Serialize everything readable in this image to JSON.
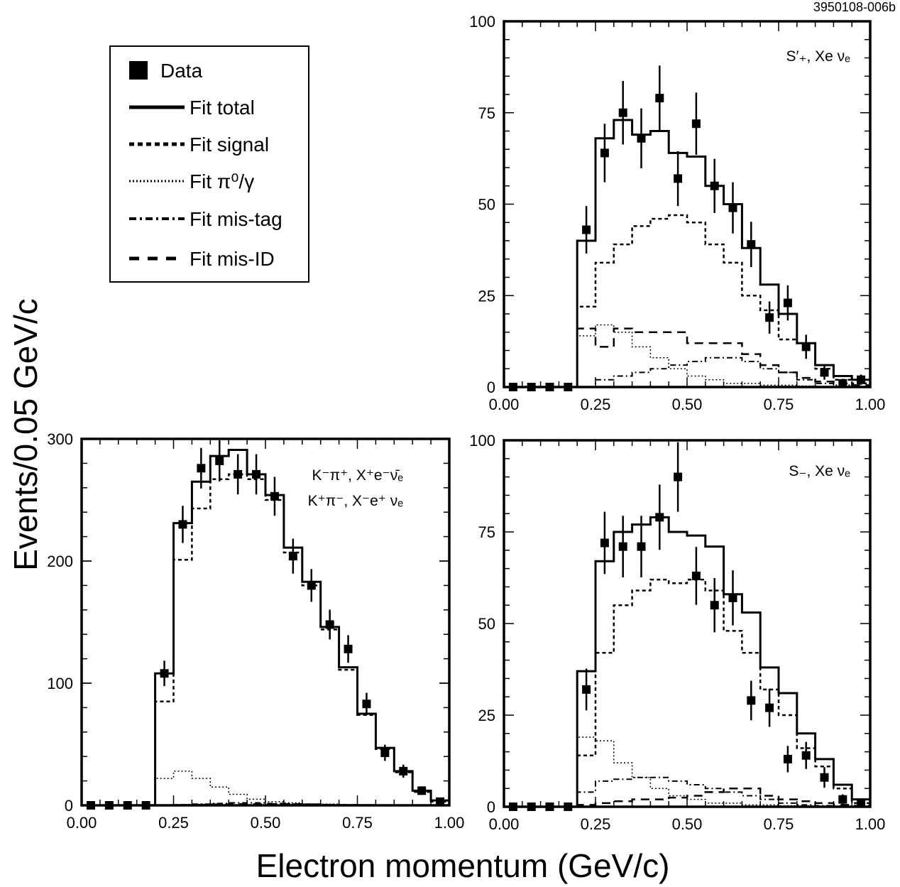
{
  "figure": {
    "id_label": "3950108-006b",
    "xlabel": "Electron momentum (GeV/c)",
    "ylabel": "Events/0.05 GeV/c"
  },
  "legend": {
    "placement": "top-left",
    "entries": [
      {
        "label": "Data",
        "style": "marker"
      },
      {
        "label": "Fit total",
        "style": "solid"
      },
      {
        "label": "Fit signal",
        "style": "dashed"
      },
      {
        "label": "Fit π⁰/γ",
        "style": "dotted"
      },
      {
        "label": "Fit mis-tag",
        "style": "dashdot"
      },
      {
        "label": "Fit mis-ID",
        "style": "longdash"
      }
    ]
  },
  "chart_data": [
    {
      "type": "histogram",
      "panel": "top-right",
      "annotation": [
        "S′₊, Xe νₑ"
      ],
      "xlim": [
        0,
        1
      ],
      "ylim": [
        0,
        100
      ],
      "xticks": [
        "0.00",
        "0.25",
        "0.50",
        "0.75",
        "1.00"
      ],
      "yticks": [
        "0",
        "25",
        "50",
        "75",
        "100"
      ],
      "bin_edges": [
        0.2,
        0.25,
        0.3,
        0.35,
        0.4,
        0.45,
        0.5,
        0.55,
        0.6,
        0.65,
        0.7,
        0.75,
        0.8,
        0.85,
        0.9,
        0.95,
        1.0
      ],
      "data_points": {
        "x": [
          0.025,
          0.075,
          0.125,
          0.175,
          0.225,
          0.275,
          0.325,
          0.375,
          0.425,
          0.475,
          0.525,
          0.575,
          0.625,
          0.675,
          0.725,
          0.775,
          0.825,
          0.875,
          0.925,
          0.975
        ],
        "y": [
          0,
          0,
          0,
          0,
          43,
          64,
          75,
          68,
          79,
          57,
          72,
          55,
          49,
          39,
          19,
          23,
          11,
          4,
          1,
          2
        ],
        "err": [
          0,
          0,
          0,
          0,
          6.5,
          8,
          8.7,
          8.2,
          8.9,
          7.5,
          8.5,
          7.4,
          7,
          6.2,
          4.4,
          4.8,
          3.3,
          2,
          1,
          1.4
        ]
      },
      "series": [
        {
          "name": "Fit total",
          "values": [
            40,
            68,
            73,
            69,
            70,
            64,
            63,
            55,
            50,
            38,
            28,
            20,
            12,
            6,
            3,
            2
          ]
        },
        {
          "name": "Fit signal",
          "values": [
            22,
            34,
            39,
            44,
            46,
            47,
            45,
            39,
            34,
            25,
            21,
            13,
            12,
            5,
            2,
            1
          ]
        },
        {
          "name": "Fit π⁰/γ",
          "values": [
            14,
            17,
            15,
            11,
            8,
            5,
            3,
            2,
            1,
            1,
            0.5,
            0.5,
            0.3,
            0.2,
            0.1,
            0.1
          ]
        },
        {
          "name": "Fit mis-tag",
          "values": [
            0,
            2,
            3,
            4,
            5,
            6,
            7,
            8,
            8,
            7,
            5,
            4,
            2,
            1,
            0.5,
            0.2
          ]
        },
        {
          "name": "Fit mis-ID",
          "values": [
            16,
            11,
            16,
            15,
            15,
            15,
            12,
            12,
            12,
            9,
            6,
            4,
            2.5,
            1.5,
            1,
            0.5
          ]
        }
      ]
    },
    {
      "type": "histogram",
      "panel": "bottom-left",
      "annotation": [
        "K⁻π⁺, X⁺e⁻ν̄ₑ",
        "K⁺π⁻, X⁻e⁺ νₑ"
      ],
      "xlim": [
        0,
        1
      ],
      "ylim": [
        0,
        300
      ],
      "xticks": [
        "0.00",
        "0.25",
        "0.50",
        "0.75",
        "1.00"
      ],
      "yticks": [
        "0",
        "100",
        "200",
        "300"
      ],
      "bin_edges": [
        0.2,
        0.25,
        0.3,
        0.35,
        0.4,
        0.45,
        0.5,
        0.55,
        0.6,
        0.65,
        0.7,
        0.75,
        0.8,
        0.85,
        0.9,
        0.95,
        1.0
      ],
      "data_points": {
        "x": [
          0.025,
          0.075,
          0.125,
          0.175,
          0.225,
          0.275,
          0.325,
          0.375,
          0.425,
          0.475,
          0.525,
          0.575,
          0.625,
          0.675,
          0.725,
          0.775,
          0.825,
          0.875,
          0.925,
          0.975
        ],
        "y": [
          0,
          0,
          0,
          0,
          108,
          230,
          276,
          282,
          271,
          271,
          253,
          204,
          180,
          148,
          128,
          83,
          43,
          28,
          12,
          3
        ],
        "err": [
          0,
          0,
          0,
          0,
          10.4,
          15.2,
          16.6,
          16.8,
          16.5,
          16.5,
          15.9,
          14.3,
          13.4,
          12.2,
          11.3,
          9.1,
          6.6,
          5.3,
          3.5,
          1.7
        ]
      },
      "series": [
        {
          "name": "Fit total",
          "values": [
            108,
            231,
            265,
            286,
            291,
            271,
            254,
            211,
            183,
            146,
            113,
            75,
            47,
            28,
            12,
            4
          ]
        },
        {
          "name": "Fit signal",
          "values": [
            85,
            201,
            243,
            267,
            271,
            267,
            250,
            207,
            180,
            144,
            111,
            74,
            46,
            27,
            11,
            3
          ]
        },
        {
          "name": "Fit π⁰/γ",
          "values": [
            22,
            28,
            22,
            15,
            9,
            5,
            3,
            2,
            1,
            1,
            0.5,
            0.5,
            0.3,
            0.2,
            0.1,
            0.1
          ]
        },
        {
          "name": "Fit mis-tag",
          "values": [
            0,
            0.5,
            1,
            1.5,
            2,
            2,
            1.5,
            1,
            1,
            0.5,
            0.5,
            0.3,
            0.2,
            0.1,
            0,
            0
          ]
        },
        {
          "name": "Fit mis-ID",
          "values": [
            0,
            0.3,
            0.5,
            0.8,
            1,
            1,
            1,
            1,
            0.8,
            0.5,
            0.3,
            0.2,
            0.1,
            0,
            0,
            0
          ]
        }
      ]
    },
    {
      "type": "histogram",
      "panel": "bottom-right",
      "annotation": [
        "S₋, Xe νₑ"
      ],
      "xlim": [
        0,
        1
      ],
      "ylim": [
        0,
        100
      ],
      "xticks": [
        "0.00",
        "0.25",
        "0.50",
        "0.75",
        "1.00"
      ],
      "yticks": [
        "0",
        "25",
        "50",
        "75",
        "100"
      ],
      "bin_edges": [
        0.2,
        0.25,
        0.3,
        0.35,
        0.4,
        0.45,
        0.5,
        0.55,
        0.6,
        0.65,
        0.7,
        0.75,
        0.8,
        0.85,
        0.9,
        0.95,
        1.0
      ],
      "data_points": {
        "x": [
          0.025,
          0.075,
          0.125,
          0.175,
          0.225,
          0.275,
          0.325,
          0.375,
          0.425,
          0.475,
          0.525,
          0.575,
          0.625,
          0.675,
          0.725,
          0.775,
          0.825,
          0.875,
          0.925,
          0.975
        ],
        "y": [
          0,
          0,
          0,
          0,
          32,
          72,
          71,
          71,
          79,
          90,
          63,
          55,
          57,
          29,
          27,
          13,
          14,
          8,
          2,
          1
        ],
        "err": [
          0,
          0,
          0,
          0,
          5.7,
          8.5,
          8.4,
          8.4,
          8.9,
          9.5,
          7.9,
          7.4,
          7.5,
          5.4,
          5.2,
          3.6,
          3.7,
          2.8,
          1.4,
          1
        ]
      },
      "series": [
        {
          "name": "Fit total",
          "values": [
            37,
            67,
            75,
            77,
            79,
            75,
            74,
            71,
            58,
            53,
            38,
            31,
            20,
            13,
            6,
            2
          ]
        },
        {
          "name": "Fit signal",
          "values": [
            14,
            42,
            55,
            59,
            62,
            61,
            62,
            59,
            48,
            42,
            32,
            25,
            16,
            11,
            5,
            1
          ]
        },
        {
          "name": "Fit π⁰/γ",
          "values": [
            19,
            18,
            12,
            8,
            5,
            3,
            2,
            1,
            1,
            0.5,
            0.5,
            0.3,
            0.2,
            0.1,
            0.1,
            0
          ]
        },
        {
          "name": "Fit mis-tag",
          "values": [
            4,
            7,
            7.5,
            8,
            8,
            7,
            6,
            5,
            4,
            3,
            2,
            1,
            0.5,
            0.3,
            0.2,
            0.1
          ]
        },
        {
          "name": "Fit mis-ID",
          "values": [
            0.5,
            1,
            1.5,
            2,
            2,
            2.5,
            3,
            4,
            5,
            5,
            3,
            2,
            1.5,
            1,
            0.5,
            0.3
          ]
        }
      ]
    }
  ]
}
